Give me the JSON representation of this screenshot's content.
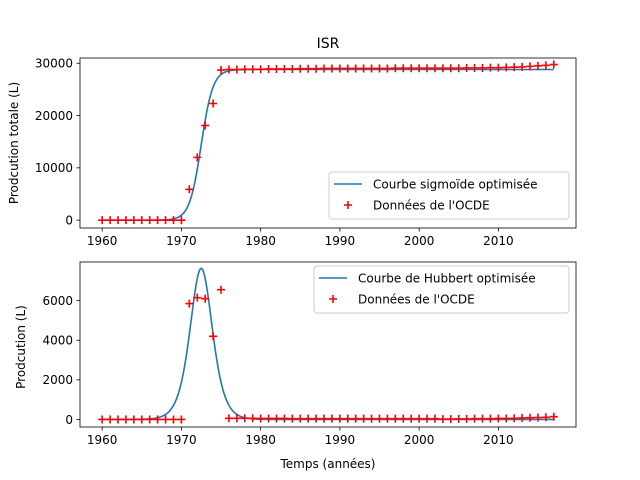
{
  "chart_data": [
    {
      "type": "line",
      "title": "ISR",
      "xlabel": "",
      "ylabel": "Prodcution totale (L)",
      "xlim": [
        1957.2,
        2019.8
      ],
      "ylim": [
        -1500,
        31000
      ],
      "xticks": [
        1960,
        1970,
        1980,
        1990,
        2000,
        2010
      ],
      "yticks": [
        0,
        10000,
        20000,
        30000
      ],
      "grid": false,
      "legend_position": "lower right",
      "series": [
        {
          "name": "Courbe sigmoïde optimisée",
          "kind": "line",
          "color": "#1f77b4",
          "model": "sigmoid",
          "params": {
            "L": 28800,
            "k": 1.35,
            "x0": 1972.5
          },
          "x_range": [
            1960,
            2017
          ]
        },
        {
          "name": "Données de l'OCDE",
          "kind": "scatter",
          "marker": "+",
          "color": "#ff0000",
          "x": [
            1960,
            1961,
            1962,
            1963,
            1964,
            1965,
            1966,
            1967,
            1968,
            1969,
            1970,
            1971,
            1972,
            1973,
            1974,
            1975,
            1976,
            1977,
            1978,
            1979,
            1980,
            1981,
            1982,
            1983,
            1984,
            1985,
            1986,
            1987,
            1988,
            1989,
            1990,
            1991,
            1992,
            1993,
            1994,
            1995,
            1996,
            1997,
            1998,
            1999,
            2000,
            2001,
            2002,
            2003,
            2004,
            2005,
            2006,
            2007,
            2008,
            2009,
            2010,
            2011,
            2012,
            2013,
            2014,
            2015,
            2016,
            2017
          ],
          "y": [
            0,
            0,
            0,
            0,
            0,
            0,
            0,
            0,
            0,
            0,
            0,
            5900,
            12000,
            18100,
            22300,
            28700,
            28800,
            28800,
            28850,
            28850,
            28850,
            28900,
            28900,
            28900,
            28900,
            28950,
            28950,
            28950,
            29000,
            29000,
            29000,
            29000,
            29000,
            29000,
            29000,
            29000,
            29000,
            29050,
            29050,
            29050,
            29050,
            29050,
            29050,
            29050,
            29050,
            29050,
            29100,
            29100,
            29100,
            29150,
            29150,
            29200,
            29250,
            29300,
            29400,
            29500,
            29600,
            29750
          ]
        }
      ]
    },
    {
      "type": "line",
      "title": "",
      "xlabel": "Temps (années)",
      "ylabel": "Prodcution (L)",
      "xlim": [
        1957.2,
        2019.8
      ],
      "ylim": [
        -380,
        7950
      ],
      "xticks": [
        1960,
        1970,
        1980,
        1990,
        2000,
        2010
      ],
      "yticks": [
        0,
        2000,
        4000,
        6000
      ],
      "grid": false,
      "legend_position": "upper right",
      "series": [
        {
          "name": "Courbe de Hubbert optimisée",
          "kind": "line",
          "color": "#1f77b4",
          "model": "hubbert",
          "params": {
            "L": 28800,
            "k": 1.06,
            "x0": 1972.5
          },
          "x_range": [
            1960,
            2017
          ]
        },
        {
          "name": "Données de l'OCDE",
          "kind": "scatter",
          "marker": "+",
          "color": "#ff0000",
          "x": [
            1960,
            1961,
            1962,
            1963,
            1964,
            1965,
            1966,
            1967,
            1968,
            1969,
            1970,
            1971,
            1972,
            1973,
            1974,
            1975,
            1976,
            1977,
            1978,
            1979,
            1980,
            1981,
            1982,
            1983,
            1984,
            1985,
            1986,
            1987,
            1988,
            1989,
            1990,
            1991,
            1992,
            1993,
            1994,
            1995,
            1996,
            1997,
            1998,
            1999,
            2000,
            2001,
            2002,
            2003,
            2004,
            2005,
            2006,
            2007,
            2008,
            2009,
            2010,
            2011,
            2012,
            2013,
            2014,
            2015,
            2016,
            2017
          ],
          "y": [
            0,
            0,
            0,
            0,
            0,
            0,
            0,
            0,
            0,
            0,
            0,
            5850,
            6150,
            6100,
            4200,
            6550,
            60,
            60,
            60,
            60,
            50,
            50,
            50,
            50,
            40,
            40,
            40,
            40,
            40,
            40,
            40,
            40,
            40,
            40,
            40,
            40,
            40,
            40,
            40,
            40,
            40,
            40,
            40,
            20,
            20,
            30,
            30,
            40,
            40,
            40,
            50,
            50,
            60,
            80,
            90,
            100,
            110,
            140
          ]
        }
      ]
    }
  ]
}
